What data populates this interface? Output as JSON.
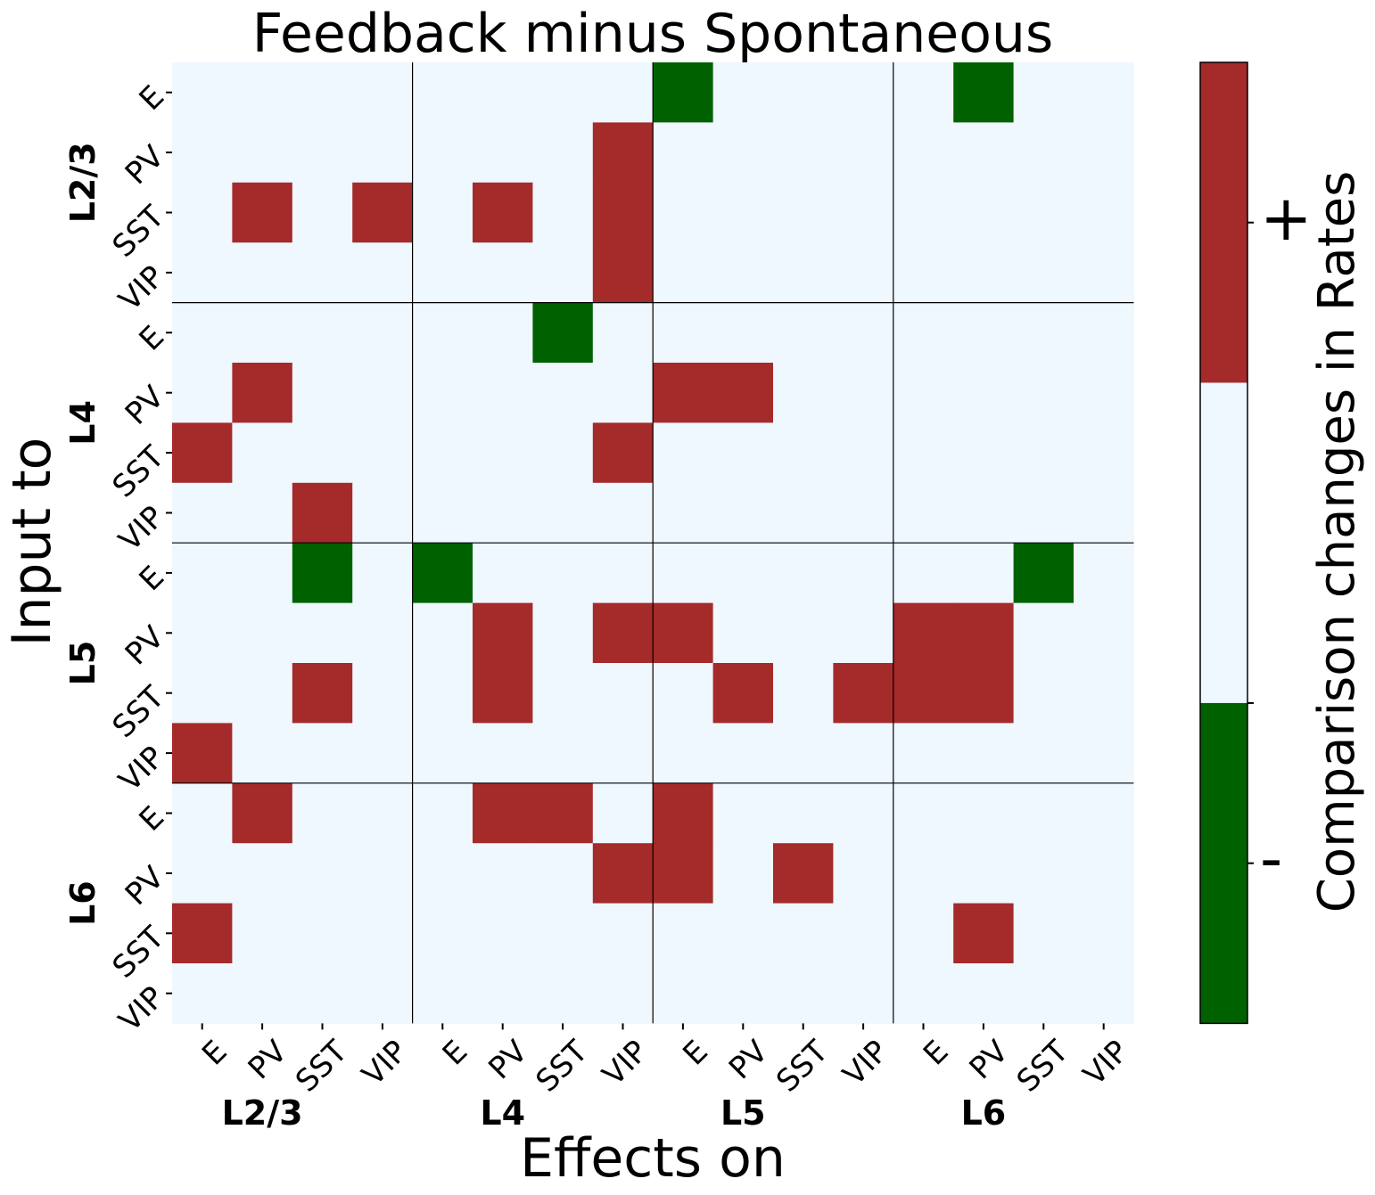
{
  "chart_data": {
    "type": "heatmap",
    "title": "Feedback minus Spontaneous",
    "xlabel": "Effects on",
    "ylabel": "Input to",
    "row_labels": [
      "E",
      "PV",
      "SST",
      "VIP",
      "E",
      "PV",
      "SST",
      "VIP",
      "E",
      "PV",
      "SST",
      "VIP",
      "E",
      "PV",
      "SST",
      "VIP"
    ],
    "col_labels": [
      "E",
      "PV",
      "SST",
      "VIP",
      "E",
      "PV",
      "SST",
      "VIP",
      "E",
      "PV",
      "SST",
      "VIP",
      "E",
      "PV",
      "SST",
      "VIP"
    ],
    "row_groups": [
      "L2/3",
      "L4",
      "L5",
      "L6"
    ],
    "col_groups": [
      "L2/3",
      "L4",
      "L5",
      "L6"
    ],
    "values": [
      [
        0,
        0,
        0,
        0,
        0,
        0,
        0,
        0,
        -1,
        0,
        0,
        0,
        0,
        -1,
        0,
        0
      ],
      [
        0,
        0,
        0,
        0,
        0,
        0,
        0,
        1,
        0,
        0,
        0,
        0,
        0,
        0,
        0,
        0
      ],
      [
        0,
        1,
        0,
        1,
        0,
        1,
        0,
        1,
        0,
        0,
        0,
        0,
        0,
        0,
        0,
        0
      ],
      [
        0,
        0,
        0,
        0,
        0,
        0,
        0,
        1,
        0,
        0,
        0,
        0,
        0,
        0,
        0,
        0
      ],
      [
        0,
        0,
        0,
        0,
        0,
        0,
        -1,
        0,
        0,
        0,
        0,
        0,
        0,
        0,
        0,
        0
      ],
      [
        0,
        1,
        0,
        0,
        0,
        0,
        0,
        0,
        1,
        1,
        0,
        0,
        0,
        0,
        0,
        0
      ],
      [
        1,
        0,
        0,
        0,
        0,
        0,
        0,
        1,
        0,
        0,
        0,
        0,
        0,
        0,
        0,
        0
      ],
      [
        0,
        0,
        1,
        0,
        0,
        0,
        0,
        0,
        0,
        0,
        0,
        0,
        0,
        0,
        0,
        0
      ],
      [
        0,
        0,
        -1,
        0,
        -1,
        0,
        0,
        0,
        0,
        0,
        0,
        0,
        0,
        0,
        -1,
        0
      ],
      [
        0,
        0,
        0,
        0,
        0,
        1,
        0,
        1,
        1,
        0,
        0,
        0,
        1,
        1,
        0,
        0
      ],
      [
        0,
        0,
        1,
        0,
        0,
        1,
        0,
        0,
        0,
        1,
        0,
        1,
        1,
        1,
        0,
        0
      ],
      [
        1,
        0,
        0,
        0,
        0,
        0,
        0,
        0,
        0,
        0,
        0,
        0,
        0,
        0,
        0,
        0
      ],
      [
        0,
        1,
        0,
        0,
        0,
        1,
        1,
        0,
        1,
        0,
        0,
        0,
        0,
        0,
        0,
        0
      ],
      [
        0,
        0,
        0,
        0,
        0,
        0,
        0,
        1,
        1,
        0,
        1,
        0,
        0,
        0,
        0,
        0
      ],
      [
        1,
        0,
        0,
        0,
        0,
        0,
        0,
        0,
        0,
        0,
        0,
        0,
        0,
        1,
        0,
        0
      ],
      [
        0,
        0,
        0,
        0,
        0,
        0,
        0,
        0,
        0,
        0,
        0,
        0,
        0,
        0,
        0,
        0
      ]
    ],
    "value_range": [
      -1,
      1
    ],
    "colors": {
      "negative": "#006100",
      "zero": "#eff7ff",
      "positive": "#a52a2a"
    },
    "colorbar": {
      "label": "Comparison changes in Rates",
      "ticks": [
        "+",
        "-"
      ]
    }
  }
}
